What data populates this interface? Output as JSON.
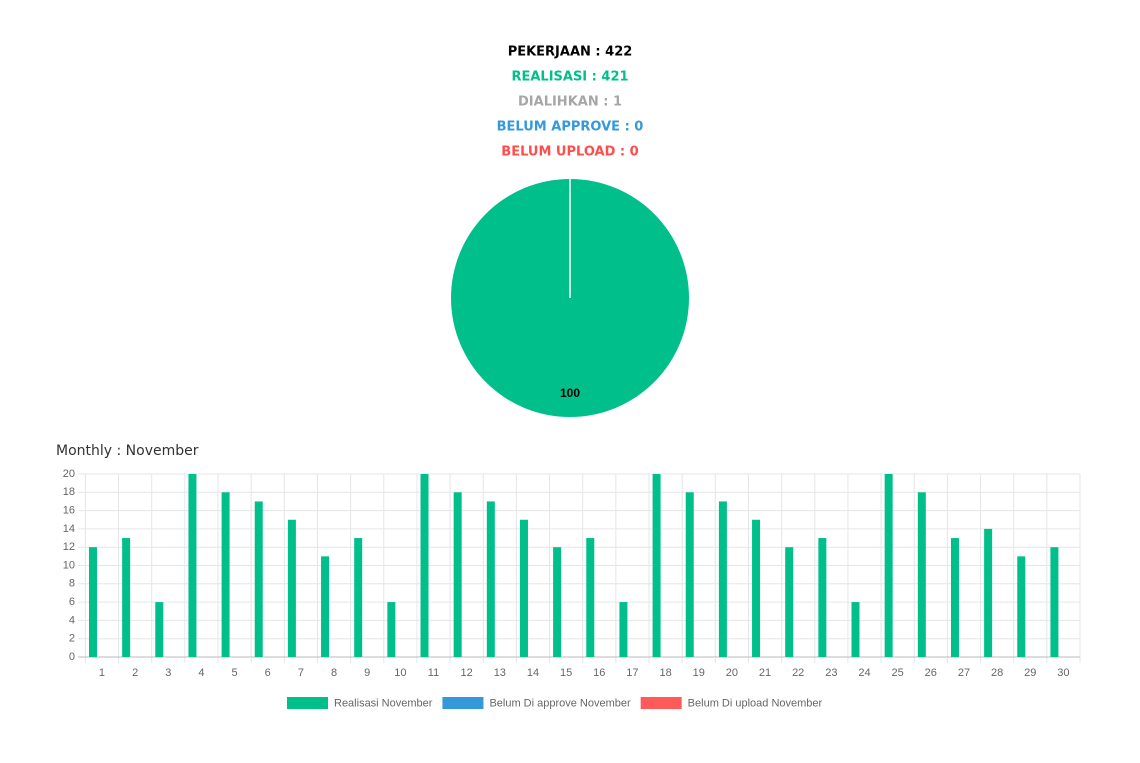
{
  "summary": [
    {
      "text": "PEKERJAAN : 422",
      "color": "#000000"
    },
    {
      "text": "REALISASI : 421",
      "color": "#00bf8a"
    },
    {
      "text": "DIALIHKAN : 1",
      "color": "#a6a6a6"
    },
    {
      "text": "BELUM APPROVE : 0",
      "color": "#3498db"
    },
    {
      "text": "BELUM UPLOAD : 0",
      "color": "#ff4d4d"
    }
  ],
  "chart_data": [
    {
      "type": "pie",
      "values": [
        100
      ],
      "value_labels": [
        "100"
      ],
      "colors": [
        "#00bf8a"
      ]
    },
    {
      "type": "bar",
      "title": "Monthly : November",
      "categories": [
        "1",
        "2",
        "3",
        "4",
        "5",
        "6",
        "7",
        "8",
        "9",
        "10",
        "11",
        "12",
        "13",
        "14",
        "15",
        "16",
        "17",
        "18",
        "19",
        "20",
        "21",
        "22",
        "23",
        "24",
        "25",
        "26",
        "27",
        "28",
        "29",
        "30"
      ],
      "series": [
        {
          "name": "Realisasi November",
          "color": "#00bf8a",
          "values": [
            12,
            13,
            6,
            20,
            18,
            17,
            15,
            11,
            13,
            6,
            20,
            18,
            17,
            15,
            12,
            13,
            6,
            20,
            18,
            17,
            15,
            12,
            13,
            6,
            20,
            18,
            13,
            14,
            11,
            12
          ]
        },
        {
          "name": "Belum Di approve November",
          "color": "#3498db",
          "values": [
            0,
            0,
            0,
            0,
            0,
            0,
            0,
            0,
            0,
            0,
            0,
            0,
            0,
            0,
            0,
            0,
            0,
            0,
            0,
            0,
            0,
            0,
            0,
            0,
            0,
            0,
            0,
            0,
            0,
            0
          ]
        },
        {
          "name": "Belum Di upload November",
          "color": "#ff5a5a",
          "values": [
            0,
            0,
            0,
            0,
            0,
            0,
            0,
            0,
            0,
            0,
            0,
            0,
            0,
            0,
            0,
            0,
            0,
            0,
            0,
            0,
            0,
            0,
            0,
            0,
            0,
            0,
            0,
            0,
            0,
            0
          ]
        }
      ],
      "ylim": [
        0,
        20
      ],
      "yticks": [
        0,
        2,
        4,
        6,
        8,
        10,
        12,
        14,
        16,
        18,
        20
      ],
      "grid": true
    }
  ]
}
